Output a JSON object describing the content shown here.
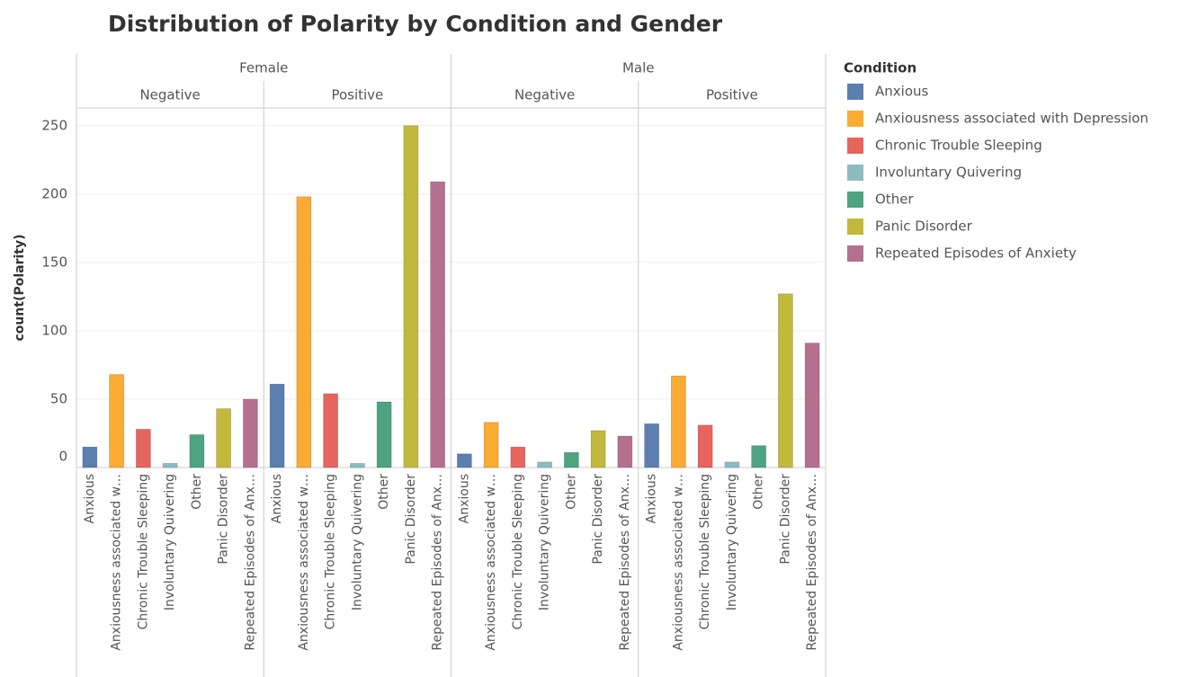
{
  "chart_data": {
    "type": "bar",
    "title": "Distribution of Polarity by Condition and Gender",
    "y_label": "count(Polarity)",
    "categories": [
      "Anxious",
      "Anxiousness associated w…",
      "Chronic Trouble Sleeping",
      "Involuntary Quivering",
      "Other",
      "Panic Disorder",
      "Repeated Episodes of Anx…"
    ],
    "colors": [
      "#5b7fae",
      "#fbaa33",
      "#e8645f",
      "#8cbcc2",
      "#4ea380",
      "#c2b83c",
      "#b6708f"
    ],
    "facets": [
      {
        "name": "Female",
        "panels": [
          {
            "name": "Negative",
            "values": [
              15,
              68,
              28,
              3,
              24,
              43,
              50
            ]
          },
          {
            "name": "Positive",
            "values": [
              61,
              198,
              54,
              3,
              48,
              250,
              209
            ]
          }
        ]
      },
      {
        "name": "Male",
        "panels": [
          {
            "name": "Negative",
            "values": [
              10,
              33,
              15,
              4,
              11,
              27,
              23
            ]
          },
          {
            "name": "Positive",
            "values": [
              32,
              67,
              31,
              4,
              16,
              127,
              91
            ]
          }
        ]
      }
    ],
    "ylim": [
      0,
      263
    ],
    "yticks": [
      0,
      50,
      100,
      150,
      200,
      250
    ],
    "grid": true,
    "legend": {
      "title": "Condition",
      "position": "right",
      "items": [
        "Anxious",
        "Anxiousness associated with Depression",
        "Chronic Trouble Sleeping",
        "Involuntary Quivering",
        "Other",
        "Panic Disorder",
        "Repeated Episodes of Anxiety"
      ]
    }
  }
}
